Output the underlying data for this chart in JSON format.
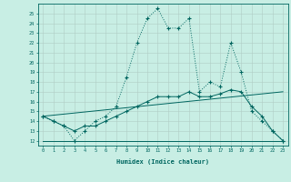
{
  "xlabel": "Humidex (Indice chaleur)",
  "xlim": [
    -0.5,
    23.5
  ],
  "ylim": [
    11.5,
    26.0
  ],
  "xticks": [
    0,
    1,
    2,
    3,
    4,
    5,
    6,
    7,
    8,
    9,
    10,
    11,
    12,
    13,
    14,
    15,
    16,
    17,
    18,
    19,
    20,
    21,
    22,
    23
  ],
  "yticks": [
    12,
    13,
    14,
    15,
    16,
    17,
    18,
    19,
    20,
    21,
    22,
    23,
    24,
    25
  ],
  "bg_color": "#c8eee4",
  "grid_color": "#b0ccc4",
  "line_color": "#006660",
  "line1_x": [
    0,
    1,
    2,
    3,
    4,
    5,
    6,
    7,
    8,
    9,
    10,
    11,
    12,
    13,
    14,
    15,
    16,
    17,
    18,
    19,
    20,
    21,
    22,
    23
  ],
  "line1_y": [
    14.5,
    14.0,
    13.5,
    12.0,
    13.0,
    14.0,
    14.5,
    15.5,
    18.5,
    22.0,
    24.5,
    25.5,
    23.5,
    23.5,
    24.5,
    17.0,
    18.0,
    17.5,
    22.0,
    19.0,
    15.0,
    14.0,
    13.0,
    12.0
  ],
  "line2_x": [
    0,
    1,
    2,
    3,
    4,
    5,
    6,
    7,
    8,
    9,
    10,
    11,
    12,
    13,
    14,
    15,
    16,
    17,
    18,
    19,
    20,
    21,
    22,
    23
  ],
  "line2_y": [
    14.5,
    14.0,
    13.5,
    13.0,
    13.5,
    13.5,
    14.0,
    14.5,
    15.0,
    15.5,
    16.0,
    16.5,
    16.5,
    16.5,
    17.0,
    16.5,
    16.5,
    16.8,
    17.2,
    17.0,
    15.5,
    14.5,
    13.0,
    12.0
  ],
  "line3_x": [
    0,
    1,
    2,
    3,
    4,
    5,
    6,
    7,
    8,
    9,
    10,
    11,
    12,
    13,
    14,
    15,
    16,
    17,
    18,
    19,
    20,
    21,
    22,
    23
  ],
  "line3_y": [
    12.0,
    12.0,
    12.0,
    12.0,
    12.0,
    12.0,
    12.0,
    12.0,
    12.0,
    12.0,
    12.0,
    12.0,
    12.0,
    12.0,
    12.0,
    12.0,
    12.0,
    12.0,
    12.0,
    12.0,
    12.0,
    12.0,
    12.0,
    12.0
  ],
  "line4_x": [
    0,
    23
  ],
  "line4_y": [
    14.5,
    17.0
  ]
}
